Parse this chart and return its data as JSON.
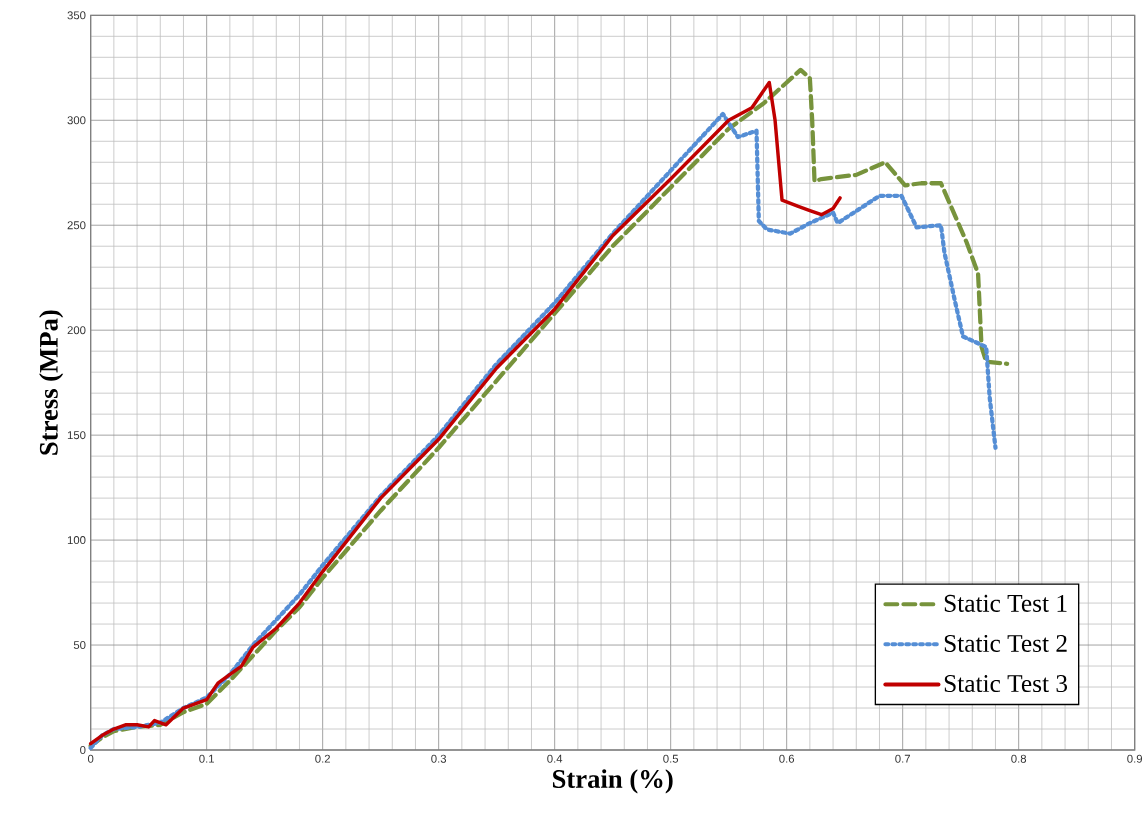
{
  "chart_data": {
    "type": "line",
    "xlabel": "Strain (%)",
    "ylabel": "Stress (MPa)",
    "xlim": [
      0,
      0.9
    ],
    "ylim": [
      0,
      350
    ],
    "xticks": [
      0,
      0.1,
      0.2,
      0.3,
      0.4,
      0.5,
      0.6,
      0.7,
      0.8,
      0.9
    ],
    "yticks": [
      0,
      50,
      100,
      150,
      200,
      250,
      300,
      350
    ],
    "grid": true,
    "legend": "bottom right",
    "marker": "none",
    "series": [
      {
        "name": "Static Test 1",
        "color": "#77933c",
        "line_style": "dashed",
        "x": [
          0,
          0.01,
          0.02,
          0.04,
          0.06,
          0.08,
          0.1,
          0.12,
          0.14,
          0.16,
          0.18,
          0.2,
          0.25,
          0.3,
          0.35,
          0.4,
          0.45,
          0.5,
          0.55,
          0.58,
          0.6,
          0.612,
          0.62,
          0.622,
          0.624,
          0.63,
          0.66,
          0.685,
          0.702,
          0.716,
          0.733,
          0.755,
          0.765,
          0.768,
          0.772,
          0.79
        ],
        "values": [
          2,
          6,
          9,
          11,
          12,
          18,
          22,
          33,
          45,
          57,
          68,
          82,
          114,
          144,
          176,
          208,
          240,
          268,
          296,
          308,
          318,
          324,
          320,
          300,
          271,
          272,
          274,
          280,
          269,
          270,
          270,
          242,
          227,
          192,
          185,
          184
        ]
      },
      {
        "name": "Static Test 2",
        "color": "#558ed5",
        "line_style": "dotted",
        "x": [
          0,
          0.01,
          0.02,
          0.04,
          0.06,
          0.08,
          0.1,
          0.12,
          0.14,
          0.16,
          0.18,
          0.2,
          0.25,
          0.3,
          0.35,
          0.4,
          0.45,
          0.5,
          0.545,
          0.558,
          0.574,
          0.576,
          0.583,
          0.603,
          0.62,
          0.64,
          0.644,
          0.68,
          0.699,
          0.712,
          0.733,
          0.736,
          0.745,
          0.752,
          0.772,
          0.775,
          0.78
        ],
        "values": [
          1,
          7,
          10,
          11,
          13,
          20,
          25,
          36,
          50,
          62,
          74,
          88,
          121,
          150,
          184,
          213,
          246,
          276,
          303,
          292,
          295,
          252,
          248,
          246,
          251,
          256,
          251,
          264,
          264,
          249,
          250,
          237,
          214,
          197,
          192,
          168,
          144
        ]
      },
      {
        "name": "Static Test 3",
        "color": "#c00000",
        "line_style": "solid",
        "x": [
          0,
          0.01,
          0.02,
          0.03,
          0.04,
          0.05,
          0.055,
          0.065,
          0.08,
          0.09,
          0.1,
          0.11,
          0.13,
          0.14,
          0.16,
          0.18,
          0.2,
          0.25,
          0.3,
          0.35,
          0.4,
          0.45,
          0.5,
          0.55,
          0.57,
          0.585,
          0.59,
          0.596,
          0.61,
          0.62,
          0.63,
          0.64,
          0.646
        ],
        "values": [
          3,
          7,
          10,
          12,
          12,
          11,
          14,
          12,
          20,
          22,
          24,
          32,
          40,
          49,
          58,
          70,
          85,
          120,
          148,
          182,
          210,
          245,
          272,
          300,
          306,
          318,
          300,
          262,
          259,
          257,
          255,
          258,
          263
        ]
      }
    ]
  }
}
